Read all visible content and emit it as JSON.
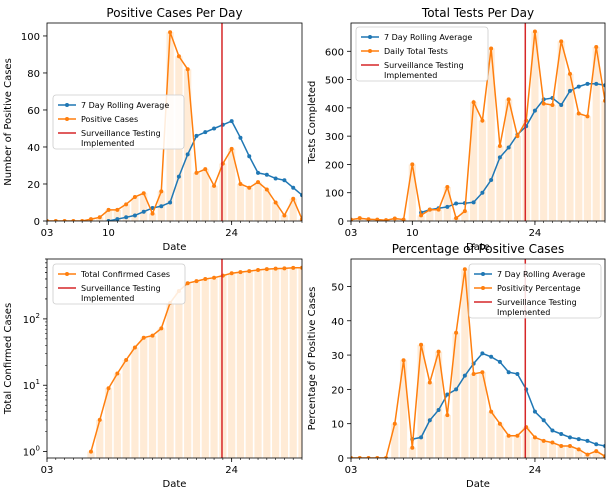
{
  "chart_data": [
    {
      "type": "line",
      "title": "Positive Cases Per Day",
      "xlabel": "Date",
      "ylabel": "Number of Positive Cases",
      "xlim": [
        3,
        32
      ],
      "ylim": [
        0,
        107
      ],
      "x_ticks": [
        "03",
        "10",
        "24"
      ],
      "y_ticks": [
        0,
        20,
        40,
        60,
        80,
        100
      ],
      "scale": "linear",
      "vline": {
        "x": 22.9,
        "label": "Surveillance Testing Implemented",
        "color": "#d62728"
      },
      "legend_position": "center-left",
      "x": [
        3,
        4,
        5,
        6,
        7,
        8,
        9,
        10,
        11,
        12,
        13,
        14,
        15,
        16,
        17,
        18,
        19,
        20,
        21,
        22,
        23,
        24,
        25,
        26,
        27,
        28,
        29,
        30,
        31,
        32
      ],
      "bar_values": [
        0,
        0,
        0,
        0,
        0,
        1,
        2,
        6,
        6,
        9,
        13,
        15,
        4,
        16,
        102,
        89,
        82,
        26,
        28,
        19,
        31,
        39,
        20,
        18,
        21,
        17,
        10,
        3,
        12,
        1
      ],
      "series": [
        {
          "name": "7 Day Rolling Average",
          "color": "#1f77b4",
          "values": [
            null,
            null,
            null,
            null,
            null,
            null,
            null,
            0,
            1,
            2,
            3,
            5,
            7,
            8,
            10,
            24,
            36,
            46,
            48,
            50,
            52,
            54,
            45,
            35,
            26,
            25,
            23,
            22,
            18,
            14
          ]
        },
        {
          "name": "Positive Cases",
          "color": "#ff7f0e",
          "values": [
            0,
            0,
            0,
            0,
            0,
            1,
            2,
            6,
            6,
            9,
            13,
            15,
            4,
            16,
            102,
            89,
            82,
            26,
            28,
            19,
            31,
            39,
            20,
            18,
            21,
            17,
            10,
            3,
            12,
            1
          ]
        }
      ]
    },
    {
      "type": "line",
      "title": "Total Tests Per Day",
      "xlabel": "Date",
      "ylabel": "Tests Completed",
      "xlim": [
        3,
        32
      ],
      "ylim": [
        0,
        700
      ],
      "x_ticks": [
        "03",
        "10",
        "24"
      ],
      "y_ticks": [
        0,
        100,
        200,
        300,
        400,
        500,
        600
      ],
      "scale": "linear",
      "vline": {
        "x": 22.9,
        "label": "Surveillance Testing Implemented",
        "color": "#d62728"
      },
      "legend_position": "upper-left",
      "x": [
        3,
        4,
        5,
        6,
        7,
        8,
        9,
        10,
        11,
        12,
        13,
        14,
        15,
        16,
        17,
        18,
        19,
        20,
        21,
        22,
        23,
        24,
        25,
        26,
        27,
        28,
        29,
        30,
        31,
        32
      ],
      "bar_values": [
        5,
        10,
        6,
        5,
        3,
        9,
        5,
        200,
        20,
        40,
        40,
        120,
        10,
        35,
        420,
        355,
        610,
        265,
        430,
        300,
        355,
        670,
        415,
        410,
        635,
        520,
        380,
        370,
        615,
        425
      ],
      "series": [
        {
          "name": "7 Day Rolling Average",
          "color": "#1f77b4",
          "values": [
            null,
            null,
            null,
            null,
            null,
            null,
            null,
            null,
            30,
            40,
            45,
            50,
            62,
            63,
            66,
            100,
            145,
            225,
            260,
            305,
            335,
            390,
            430,
            435,
            410,
            460,
            475,
            485,
            485,
            480
          ]
        },
        {
          "name": "Daily Total Tests",
          "color": "#ff7f0e",
          "values": [
            5,
            10,
            6,
            5,
            3,
            9,
            5,
            200,
            20,
            40,
            40,
            120,
            10,
            35,
            420,
            355,
            610,
            265,
            430,
            300,
            355,
            670,
            415,
            410,
            635,
            520,
            380,
            370,
            615,
            425
          ]
        }
      ]
    },
    {
      "type": "line",
      "title": "",
      "xlabel": "Date",
      "ylabel": "Total Confirmed Cases",
      "xlim": [
        3,
        32
      ],
      "ylim": [
        0.8,
        800
      ],
      "x_ticks": [
        "03",
        "24"
      ],
      "y_ticks": [
        "10^0",
        "10^1",
        "10^2"
      ],
      "scale": "log",
      "vline": {
        "x": 22.9,
        "label": "Surveillance Testing Implemented",
        "color": "#d62728"
      },
      "legend_position": "upper-left",
      "x": [
        3,
        4,
        5,
        6,
        7,
        8,
        9,
        10,
        11,
        12,
        13,
        14,
        15,
        16,
        17,
        18,
        19,
        20,
        21,
        22,
        23,
        24,
        25,
        26,
        27,
        28,
        29,
        30,
        31,
        32
      ],
      "bar_values": [
        null,
        null,
        null,
        null,
        null,
        1,
        3,
        9,
        15,
        24,
        37,
        52,
        56,
        72,
        174,
        263,
        345,
        371,
        399,
        418,
        449,
        488,
        508,
        526,
        547,
        564,
        574,
        577,
        589,
        590
      ],
      "series": [
        {
          "name": "Total Confirmed Cases",
          "color": "#ff7f0e",
          "values": [
            null,
            null,
            null,
            null,
            null,
            1,
            3,
            9,
            15,
            24,
            37,
            52,
            56,
            72,
            174,
            263,
            345,
            371,
            399,
            418,
            449,
            488,
            508,
            526,
            547,
            564,
            574,
            577,
            589,
            590
          ]
        }
      ]
    },
    {
      "type": "line",
      "title": "Percentage of Positive Cases",
      "xlabel": "Date",
      "ylabel": "Percentage of Positive Cases",
      "xlim": [
        3,
        32
      ],
      "ylim": [
        0,
        58
      ],
      "x_ticks": [
        "03",
        "24"
      ],
      "y_ticks": [
        0,
        10,
        20,
        30,
        40,
        50
      ],
      "scale": "linear",
      "vline": {
        "x": 22.9,
        "label": "Surveillance Testing Implemented",
        "color": "#d62728"
      },
      "legend_position": "upper-right",
      "x": [
        3,
        4,
        5,
        6,
        7,
        8,
        9,
        10,
        11,
        12,
        13,
        14,
        15,
        16,
        17,
        18,
        19,
        20,
        21,
        22,
        23,
        24,
        25,
        26,
        27,
        28,
        29,
        30,
        31,
        32
      ],
      "bar_values": [
        0,
        0,
        0,
        0,
        0,
        10,
        28.5,
        3,
        33,
        22,
        31,
        12.5,
        36.5,
        55,
        24.5,
        25,
        13.5,
        10,
        6.5,
        6.5,
        9,
        6,
        5,
        4.5,
        3.5,
        3.5,
        2.5,
        1,
        2,
        0.5
      ],
      "series": [
        {
          "name": "7 Day Rolling Average",
          "color": "#1f77b4",
          "values": [
            null,
            null,
            null,
            null,
            null,
            null,
            null,
            5.5,
            6,
            11,
            14,
            18.5,
            20,
            24,
            27.5,
            30.5,
            29.5,
            28,
            25,
            24.5,
            20,
            13.5,
            11,
            8,
            7,
            6,
            5.5,
            5,
            4,
            3.5
          ]
        },
        {
          "name": "Positivity Percentage",
          "color": "#ff7f0e",
          "values": [
            0,
            0,
            0,
            0,
            0,
            10,
            28.5,
            3,
            33,
            22,
            31,
            12.5,
            36.5,
            55,
            24.5,
            25,
            13.5,
            10,
            6.5,
            6.5,
            9,
            6,
            5,
            4.5,
            3.5,
            3.5,
            2.5,
            1,
            2,
            0.5
          ]
        }
      ]
    }
  ]
}
